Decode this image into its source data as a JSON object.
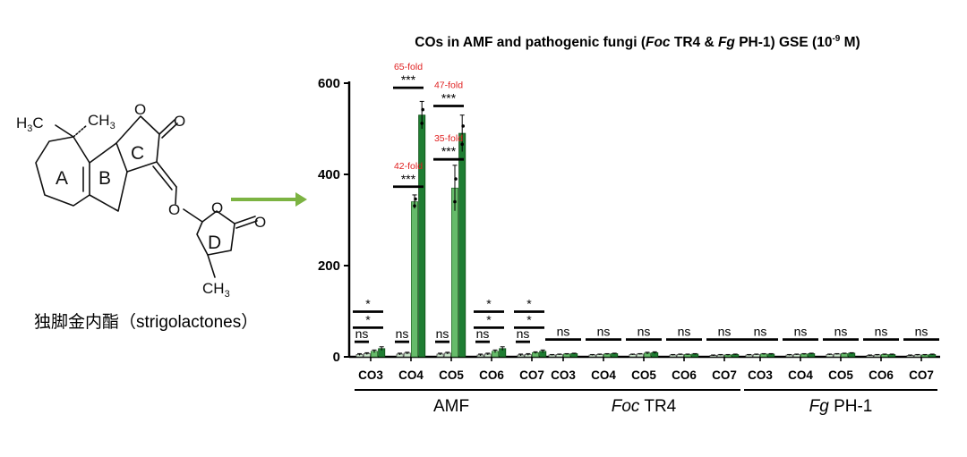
{
  "caption": "独脚金内酯（strigolactones）",
  "structure": {
    "atoms": {
      "h3c": "H3C",
      "ch3": "CH3",
      "o1": "O",
      "o2": "O",
      "o3": "O",
      "o4": "O",
      "o5": "O",
      "ch3_bottom": "CH3"
    },
    "ring_labels": [
      "A",
      "B",
      "C",
      "D"
    ]
  },
  "colors": {
    "arrow": "#7cb342",
    "light_green": "#c8e6c9",
    "mid_green": "#66bb6a",
    "dark_green": "#1e7d32",
    "fold_red": "#e02020"
  },
  "chart_data": {
    "type": "bar",
    "title": "COs in AMF and pathogenic fungi (Foc TR4 & Fg PH-1) GSE (10-9 M)",
    "title_parts": {
      "a": "COs in AMF and pathogenic fungi (",
      "foc": "Foc",
      "b": " TR4 & ",
      "fg": "Fg",
      "c": " PH-1) GSE (10",
      "sup": "-9",
      "d": " M)"
    },
    "ylim": [
      0,
      600
    ],
    "yticks": [
      0,
      200,
      400,
      600
    ],
    "ytick_labels": [
      "0",
      "200",
      "400",
      "600"
    ],
    "categories": [
      "CO3",
      "CO4",
      "CO5",
      "CO6",
      "CO7"
    ],
    "groups": [
      {
        "label": "AMF",
        "label_italic": "",
        "label_rest": "AMF",
        "bars": [
          [
            5,
            7,
            12,
            18
          ],
          [
            6,
            8,
            340,
            530
          ],
          [
            6,
            8,
            370,
            490
          ],
          [
            4,
            6,
            12,
            18
          ],
          [
            4,
            5,
            9,
            12
          ]
        ],
        "errors": [
          [
            2,
            2,
            3,
            4
          ],
          [
            2,
            2,
            15,
            30
          ],
          [
            2,
            2,
            50,
            40
          ],
          [
            2,
            2,
            3,
            4
          ],
          [
            2,
            2,
            2,
            3
          ]
        ],
        "annotations": [
          {
            "cat": 0,
            "marks": [
              {
                "text": "ns",
                "y": 33
              },
              {
                "text": "*",
                "y": 64
              },
              {
                "text": "*",
                "y": 99
              }
            ]
          },
          {
            "cat": 1,
            "marks": [
              {
                "text": "ns",
                "y": 33
              },
              {
                "text": "***",
                "y": 373,
                "fold": "42-fold"
              },
              {
                "text": "***",
                "y": 590,
                "fold": "65-fold"
              }
            ]
          },
          {
            "cat": 2,
            "marks": [
              {
                "text": "ns",
                "y": 33
              },
              {
                "text": "***",
                "y": 433,
                "fold": "35-fold"
              },
              {
                "text": "***",
                "y": 550,
                "fold": "47-fold"
              }
            ]
          },
          {
            "cat": 3,
            "marks": [
              {
                "text": "ns",
                "y": 33
              },
              {
                "text": "*",
                "y": 64
              },
              {
                "text": "*",
                "y": 99
              }
            ]
          },
          {
            "cat": 4,
            "marks": [
              {
                "text": "ns",
                "y": 33
              },
              {
                "text": "*",
                "y": 64
              },
              {
                "text": "*",
                "y": 99
              }
            ]
          }
        ]
      },
      {
        "label": "Foc TR4",
        "label_italic": "Foc",
        "label_rest": " TR4",
        "bars": [
          [
            4,
            5,
            6,
            7
          ],
          [
            4,
            5,
            6,
            7
          ],
          [
            5,
            6,
            8,
            9
          ],
          [
            4,
            5,
            5,
            6
          ],
          [
            3,
            4,
            4,
            5
          ]
        ],
        "errors": [
          [
            1,
            1,
            1,
            1
          ],
          [
            1,
            1,
            1,
            1
          ],
          [
            1,
            1,
            2,
            2
          ],
          [
            1,
            1,
            1,
            1
          ],
          [
            1,
            1,
            1,
            1
          ]
        ],
        "annotations": [
          {
            "cat": 0,
            "marks": [
              {
                "text": "ns",
                "y": 38
              }
            ]
          },
          {
            "cat": 1,
            "marks": [
              {
                "text": "ns",
                "y": 38
              }
            ]
          },
          {
            "cat": 2,
            "marks": [
              {
                "text": "ns",
                "y": 38
              }
            ]
          },
          {
            "cat": 3,
            "marks": [
              {
                "text": "ns",
                "y": 38
              }
            ]
          },
          {
            "cat": 4,
            "marks": [
              {
                "text": "ns",
                "y": 38
              }
            ]
          }
        ]
      },
      {
        "label": "Fg PH-1",
        "label_italic": "Fg",
        "label_rest": " PH-1",
        "bars": [
          [
            4,
            5,
            6,
            6
          ],
          [
            4,
            5,
            6,
            7
          ],
          [
            5,
            6,
            7,
            8
          ],
          [
            3,
            4,
            5,
            5
          ],
          [
            3,
            4,
            4,
            5
          ]
        ],
        "errors": [
          [
            1,
            1,
            1,
            1
          ],
          [
            1,
            1,
            1,
            1
          ],
          [
            1,
            1,
            1,
            1
          ],
          [
            1,
            1,
            1,
            1
          ],
          [
            1,
            1,
            1,
            1
          ]
        ],
        "annotations": [
          {
            "cat": 0,
            "marks": [
              {
                "text": "ns",
                "y": 38
              }
            ]
          },
          {
            "cat": 1,
            "marks": [
              {
                "text": "ns",
                "y": 38
              }
            ]
          },
          {
            "cat": 2,
            "marks": [
              {
                "text": "ns",
                "y": 38
              }
            ]
          },
          {
            "cat": 3,
            "marks": [
              {
                "text": "ns",
                "y": 38
              }
            ]
          },
          {
            "cat": 4,
            "marks": [
              {
                "text": "ns",
                "y": 38
              }
            ]
          }
        ]
      }
    ],
    "grid": false,
    "legend": "none"
  }
}
